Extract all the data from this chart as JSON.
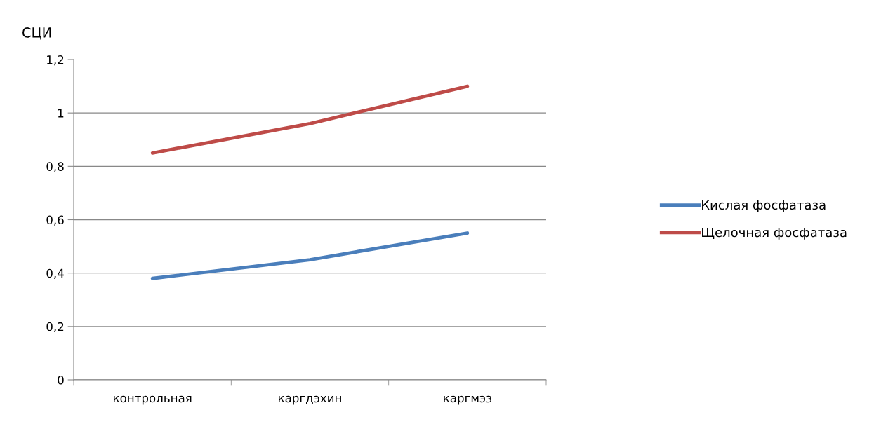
{
  "chart_data": {
    "type": "line",
    "ylabel": "СЦИ",
    "categories": [
      "контрольная",
      "каргдэхин",
      "каргмэз"
    ],
    "series": [
      {
        "name": "Кислая фосфатаза",
        "color": "#4a7ebb",
        "values": [
          0.38,
          0.45,
          0.55
        ]
      },
      {
        "name": "Щелочная фосфатаза",
        "color": "#be4b48",
        "values": [
          0.85,
          0.96,
          1.1
        ]
      }
    ],
    "ylim": [
      0,
      1.2
    ],
    "yticks": [
      0,
      {
        "value": 0.2,
        "label": "0,2"
      },
      {
        "value": 0.4,
        "label": "0,4"
      },
      {
        "value": 0.6,
        "label": "0,6"
      },
      {
        "value": 0.8,
        "label": "0,8"
      },
      1,
      {
        "value": 1.2,
        "label": "1,2"
      }
    ],
    "grid": "y",
    "legend": "right",
    "marker": "none",
    "line_style": "solid"
  }
}
